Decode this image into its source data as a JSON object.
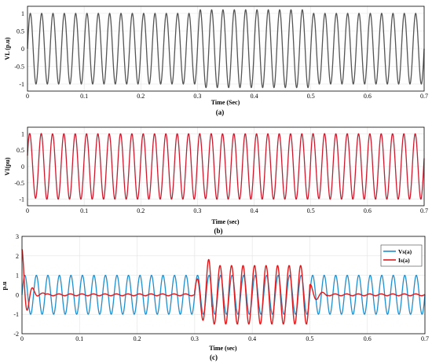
{
  "chart_data": [
    {
      "type": "line",
      "caption": "(a)",
      "xlabel": "Time (Sec)",
      "ylabel": "VL (p.u)",
      "xlim": [
        0,
        0.7
      ],
      "ylim": [
        -1.2,
        1.2
      ],
      "xticks": [
        "0",
        "0.1",
        "0.2",
        "0.3",
        "0.4",
        "0.5",
        "0.6",
        "0.7"
      ],
      "yticks": [
        "-1",
        "-0.5",
        "0",
        "0.5",
        "1"
      ],
      "grid": true,
      "series": [
        {
          "frequency_hz": 50,
          "color": "#555555",
          "segments": [
            {
              "t_start": 0.0,
              "t_end": 0.3,
              "amplitude": 1.0
            },
            {
              "t_start": 0.3,
              "t_end": 0.5,
              "amplitude": 1.1
            },
            {
              "t_start": 0.5,
              "t_end": 0.7,
              "amplitude": 1.0
            }
          ]
        }
      ]
    },
    {
      "type": "line",
      "caption": "(b)",
      "xlabel": "Time (sec)",
      "ylabel": "VI(pu)",
      "xlim": [
        0,
        0.7
      ],
      "ylim": [
        -1.2,
        1.2
      ],
      "xticks": [
        "0",
        "0.1",
        "0.2",
        "0.3",
        "0.4",
        "0.5",
        "0.6",
        "0.7"
      ],
      "yticks": [
        "-1",
        "-0.5",
        "0",
        "0.5",
        "1"
      ],
      "grid": true,
      "series": [
        {
          "frequency_hz": 50,
          "color": "#cc1a2e",
          "segments": [
            {
              "t_start": 0.0,
              "t_end": 0.7,
              "amplitude": 1.0
            }
          ],
          "transients": [
            {
              "t": 0.0,
              "peak_deviation": 0.1
            },
            {
              "t": 0.3,
              "peak_deviation": 0.06
            },
            {
              "t": 0.5,
              "peak_deviation": 0.06
            }
          ]
        }
      ]
    },
    {
      "type": "line",
      "caption": "(c)",
      "xlabel": "Time (sec)",
      "ylabel": "p.u",
      "xlim": [
        0,
        0.7
      ],
      "ylim": [
        -2,
        3
      ],
      "xticks": [
        "0",
        "0.1",
        "0.2",
        "0.3",
        "0.4",
        "0.5",
        "0.6",
        "0.7"
      ],
      "yticks": [
        "-2",
        "-1",
        "0",
        "1",
        "2",
        "3"
      ],
      "grid": true,
      "legend_position": "top-right",
      "series": [
        {
          "name": "Vs(a)",
          "color": "#1f8fcf",
          "frequency_hz": 50,
          "amplitude": 1.0
        },
        {
          "name": "Is(a)",
          "color": "#e0191c",
          "frequency_hz": 50,
          "events": [
            {
              "t_start": 0.0,
              "t_end": 0.04,
              "description": "inrush",
              "peak_max": 2.4,
              "peak_min": -1.9
            },
            {
              "t_start": 0.04,
              "t_end": 0.3,
              "amplitude": 0.05
            },
            {
              "t_start": 0.3,
              "t_end": 0.5,
              "amplitude": 1.5
            },
            {
              "t_start": 0.5,
              "t_end": 0.7,
              "amplitude": 0.05
            }
          ]
        }
      ]
    }
  ]
}
